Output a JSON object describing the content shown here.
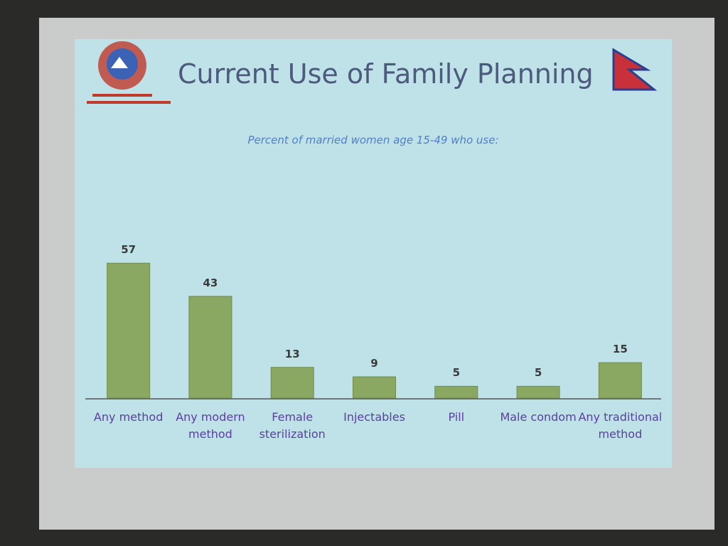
{
  "chart_data": {
    "type": "bar",
    "title": "Current Use of Family Planning",
    "subtitle": "Percent of married women age 15-49 who use:",
    "categories": [
      "Any method",
      "Any modern method",
      "Female sterilization",
      "Injectables",
      "Pill",
      "Male condom",
      "Any traditional method"
    ],
    "values": [
      57,
      43,
      13,
      9,
      5,
      5,
      15
    ],
    "color": "#8aa862"
  }
}
